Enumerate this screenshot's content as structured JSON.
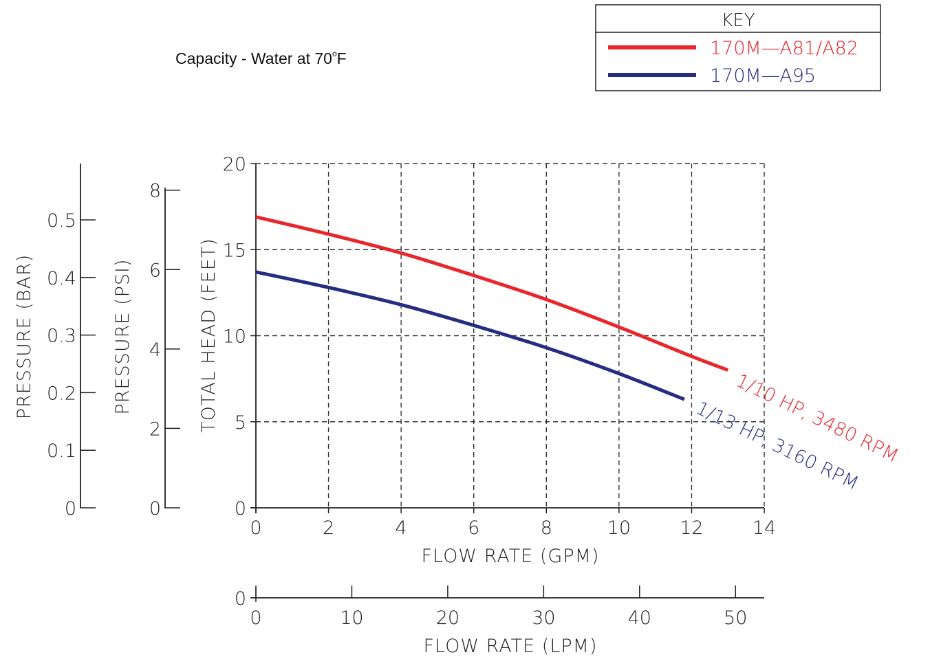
{
  "title": {
    "text": "Capacity - Water at 70",
    "degree": "o",
    "unit": "F"
  },
  "key": {
    "header": "KEY",
    "items": [
      {
        "label": "170M—A81/A82",
        "color": "#e8262b"
      },
      {
        "label": "170M—A95",
        "color": "#262d80"
      }
    ]
  },
  "chart_data": {
    "type": "line",
    "xlabel": "FLOW RATE (GPM)",
    "ylabel": "TOTAL HEAD (FEET)",
    "xlim": [
      0,
      14
    ],
    "ylim": [
      0,
      20
    ],
    "x_ticks": [
      0,
      2,
      4,
      6,
      8,
      10,
      12,
      14
    ],
    "y_ticks": [
      0,
      5,
      10,
      15,
      20
    ],
    "grid": true,
    "legend": "top-right",
    "series": [
      {
        "name": "170M—A81/A82",
        "annotation": "1/10 HP, 3480 RPM",
        "color": "#e8262b",
        "x": [
          0,
          2,
          4,
          6,
          8,
          10,
          12,
          13
        ],
        "y": [
          16.9,
          15.9,
          14.8,
          13.5,
          12.1,
          10.5,
          8.8,
          8.0
        ]
      },
      {
        "name": "170M—A95",
        "annotation": "1/13 HP, 3160 RPM",
        "color": "#262d80",
        "x": [
          0,
          2,
          4,
          6,
          8,
          10,
          11.8
        ],
        "y": [
          13.7,
          12.8,
          11.8,
          10.6,
          9.3,
          7.8,
          6.3
        ]
      }
    ],
    "secondary_axes": [
      {
        "label": "PRESSURE (BAR)",
        "ticks": [
          0,
          0.1,
          0.2,
          0.3,
          0.4,
          0.5
        ],
        "tick_labels": [
          "0",
          "0.1",
          "0.2",
          "0.3",
          "0.4",
          "0.5"
        ]
      },
      {
        "label": "PRESSURE (PSI)",
        "ticks": [
          0,
          2,
          4,
          6,
          8
        ],
        "tick_labels": [
          "0",
          "2",
          "4",
          "6",
          "8"
        ]
      },
      {
        "label": "FLOW RATE (LPM)",
        "ticks": [
          0,
          10,
          20,
          30,
          40,
          50
        ],
        "tick_labels": [
          "0",
          "10",
          "20",
          "30",
          "40",
          "50"
        ]
      }
    ]
  }
}
